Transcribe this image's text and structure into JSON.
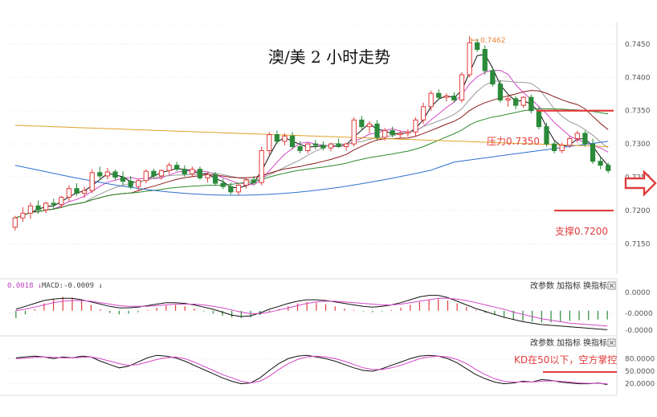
{
  "chart_data": [
    {
      "type": "candlestick",
      "title": "澳/美 2 小时走势",
      "y_ticks": [
        "0.7450",
        "0.7400",
        "0.7350",
        "0.7300",
        "0.7250",
        "0.7200",
        "0.7150"
      ],
      "ylim": [
        0.7118,
        0.748
      ],
      "high_marker": "0.7462",
      "resistance": {
        "label": "压力0.7350",
        "value": 0.735
      },
      "support": {
        "label": "支撑0.7200",
        "value": 0.72
      },
      "ohlc": [
        [
          0.7175,
          0.7192,
          0.717,
          0.7189
        ],
        [
          0.7189,
          0.7205,
          0.7183,
          0.7196
        ],
        [
          0.7196,
          0.7212,
          0.7188,
          0.7207
        ],
        [
          0.7207,
          0.7215,
          0.7195,
          0.7201
        ],
        [
          0.7201,
          0.7213,
          0.7196,
          0.7211
        ],
        [
          0.7211,
          0.7218,
          0.7202,
          0.7209
        ],
        [
          0.7209,
          0.7222,
          0.7204,
          0.722
        ],
        [
          0.722,
          0.7238,
          0.7214,
          0.7233
        ],
        [
          0.7233,
          0.7241,
          0.7222,
          0.7226
        ],
        [
          0.7226,
          0.7236,
          0.7219,
          0.723
        ],
        [
          0.723,
          0.7262,
          0.7226,
          0.7257
        ],
        [
          0.7257,
          0.7266,
          0.7246,
          0.7252
        ],
        [
          0.7252,
          0.7264,
          0.7247,
          0.7258
        ],
        [
          0.7258,
          0.7262,
          0.7246,
          0.725
        ],
        [
          0.725,
          0.7259,
          0.7238,
          0.7244
        ],
        [
          0.7244,
          0.7252,
          0.7232,
          0.7236
        ],
        [
          0.7236,
          0.7247,
          0.723,
          0.7245
        ],
        [
          0.7245,
          0.7262,
          0.7241,
          0.7259
        ],
        [
          0.7259,
          0.7263,
          0.7248,
          0.7252
        ],
        [
          0.7252,
          0.7262,
          0.7246,
          0.726
        ],
        [
          0.726,
          0.7272,
          0.7255,
          0.7268
        ],
        [
          0.7268,
          0.7273,
          0.7259,
          0.7262
        ],
        [
          0.7262,
          0.7268,
          0.7251,
          0.7255
        ],
        [
          0.7255,
          0.7266,
          0.725,
          0.7262
        ],
        [
          0.7262,
          0.7266,
          0.7246,
          0.7249
        ],
        [
          0.7249,
          0.7257,
          0.7242,
          0.7254
        ],
        [
          0.7254,
          0.7258,
          0.7238,
          0.7241
        ],
        [
          0.7241,
          0.7248,
          0.7232,
          0.7236
        ],
        [
          0.7236,
          0.7242,
          0.7224,
          0.7228
        ],
        [
          0.7228,
          0.724,
          0.7223,
          0.7238
        ],
        [
          0.7238,
          0.725,
          0.7233,
          0.7246
        ],
        [
          0.7246,
          0.7252,
          0.7238,
          0.7242
        ],
        [
          0.7242,
          0.7296,
          0.7238,
          0.729
        ],
        [
          0.729,
          0.7318,
          0.7284,
          0.7314
        ],
        [
          0.7314,
          0.732,
          0.73,
          0.7304
        ],
        [
          0.7304,
          0.7316,
          0.7298,
          0.7312
        ],
        [
          0.7312,
          0.7318,
          0.7292,
          0.7296
        ],
        [
          0.7296,
          0.7304,
          0.7286,
          0.729
        ],
        [
          0.729,
          0.7302,
          0.7286,
          0.73
        ],
        [
          0.73,
          0.7306,
          0.7292,
          0.7298
        ],
        [
          0.7298,
          0.7304,
          0.729,
          0.7294
        ],
        [
          0.7294,
          0.7302,
          0.7289,
          0.73
        ],
        [
          0.73,
          0.7308,
          0.7294,
          0.7296
        ],
        [
          0.7296,
          0.7302,
          0.729,
          0.73
        ],
        [
          0.73,
          0.734,
          0.7296,
          0.7336
        ],
        [
          0.7336,
          0.7342,
          0.732,
          0.7326
        ],
        [
          0.7326,
          0.7334,
          0.7316,
          0.733
        ],
        [
          0.733,
          0.7336,
          0.7306,
          0.731
        ],
        [
          0.731,
          0.7324,
          0.7305,
          0.732
        ],
        [
          0.732,
          0.7326,
          0.731,
          0.7314
        ],
        [
          0.7314,
          0.732,
          0.7308,
          0.7316
        ],
        [
          0.7316,
          0.7322,
          0.7311,
          0.7318
        ],
        [
          0.7318,
          0.734,
          0.7312,
          0.7336
        ],
        [
          0.7336,
          0.7362,
          0.733,
          0.7356
        ],
        [
          0.7356,
          0.738,
          0.735,
          0.7376
        ],
        [
          0.7376,
          0.7382,
          0.7366,
          0.737
        ],
        [
          0.737,
          0.7376,
          0.7364,
          0.7372
        ],
        [
          0.7372,
          0.7378,
          0.7362,
          0.7366
        ],
        [
          0.7366,
          0.7408,
          0.7362,
          0.7404
        ],
        [
          0.7404,
          0.7462,
          0.74,
          0.7452
        ],
        [
          0.7452,
          0.7458,
          0.7438,
          0.7442
        ],
        [
          0.7442,
          0.7448,
          0.7404,
          0.741
        ],
        [
          0.741,
          0.7416,
          0.7386,
          0.739
        ],
        [
          0.739,
          0.7396,
          0.7362,
          0.7366
        ],
        [
          0.7366,
          0.7372,
          0.7356,
          0.7368
        ],
        [
          0.7368,
          0.7372,
          0.7352,
          0.7358
        ],
        [
          0.7358,
          0.7372,
          0.7354,
          0.737
        ],
        [
          0.737,
          0.7374,
          0.7346,
          0.735
        ],
        [
          0.735,
          0.7356,
          0.7322,
          0.7326
        ],
        [
          0.7326,
          0.7332,
          0.7296,
          0.73
        ],
        [
          0.73,
          0.7304,
          0.7286,
          0.729
        ],
        [
          0.729,
          0.7302,
          0.7286,
          0.7298
        ],
        [
          0.7298,
          0.7312,
          0.7294,
          0.7308
        ],
        [
          0.7308,
          0.732,
          0.7302,
          0.7316
        ],
        [
          0.7316,
          0.732,
          0.7296,
          0.73
        ],
        [
          0.73,
          0.7308,
          0.727,
          0.7274
        ],
        [
          0.7274,
          0.728,
          0.7262,
          0.7268
        ],
        [
          0.7268,
          0.7272,
          0.7256,
          0.726
        ]
      ]
    },
    {
      "type": "line",
      "name": "MACD",
      "header_prefix": "0.0018 ↓",
      "header_macd": "MACD:-0.0009 ↓",
      "y_ticks": [
        "0.0000",
        "-0.0000",
        "-0.0000"
      ],
      "ylim": [
        -0.003,
        0.0025
      ],
      "buttons": [
        "改参数",
        "加指标",
        "换指标"
      ],
      "hist": [
        -0.001,
        -0.0005,
        0.0002,
        0.001,
        0.0016,
        0.0019,
        0.0018,
        0.0014,
        0.0008,
        0.0002,
        -0.0003,
        -0.0005,
        -0.0004,
        -0.0002,
        0.0001,
        0.0004,
        0.0007,
        0.0008,
        0.0006,
        0.0003,
        -0.0001,
        -0.0004,
        -0.0007,
        -0.0009,
        -0.001,
        -0.0009,
        -0.0006,
        -0.0002,
        0.0002,
        0.0006,
        0.001,
        0.0012,
        0.0011,
        0.0009,
        0.0006,
        0.0003,
        0.0001,
        -0.0001,
        -0.0002,
        -0.0001,
        0.0001,
        0.0004,
        0.0008,
        0.0012,
        0.0015,
        0.0016,
        0.0014,
        0.001,
        0.0005,
        0.0001,
        -0.0003,
        -0.0006,
        -0.0009,
        -0.0012,
        -0.0014,
        -0.0015,
        -0.0016,
        -0.0016,
        -0.0015,
        -0.0014,
        -0.0013,
        -0.0013,
        -0.0012,
        -0.0012
      ],
      "dif": [
        0.0002,
        0.0006,
        0.001,
        0.0014,
        0.0016,
        0.0017,
        0.0017,
        0.0015,
        0.0012,
        0.0009,
        0.0006,
        0.0004,
        0.0004,
        0.0005,
        0.0007,
        0.0009,
        0.0011,
        0.0011,
        0.001,
        0.0008,
        0.0005,
        0.0002,
        -0.0002,
        -0.0006,
        -0.0008,
        -0.0007,
        -0.0003,
        0.0002,
        0.0006,
        0.001,
        0.0013,
        0.0015,
        0.0015,
        0.0014,
        0.0012,
        0.001,
        0.0008,
        0.0006,
        0.0005,
        0.0006,
        0.0008,
        0.0011,
        0.0015,
        0.0019,
        0.0021,
        0.0021,
        0.0018,
        0.0013,
        0.0008,
        0.0003,
        -0.0001,
        -0.0005,
        -0.0009,
        -0.0012,
        -0.0015,
        -0.0017,
        -0.0019,
        -0.002,
        -0.0021,
        -0.0022,
        -0.0023,
        -0.0024,
        -0.0025,
        -0.0026
      ],
      "dea": [
        0.0,
        0.0002,
        0.0005,
        0.0008,
        0.0011,
        0.0013,
        0.0014,
        0.0014,
        0.0013,
        0.0011,
        0.0009,
        0.0007,
        0.0006,
        0.0006,
        0.0006,
        0.0007,
        0.0008,
        0.0009,
        0.0009,
        0.0009,
        0.0008,
        0.0006,
        0.0004,
        0.0001,
        -0.0002,
        -0.0004,
        -0.0004,
        -0.0002,
        0.0001,
        0.0004,
        0.0007,
        0.001,
        0.0012,
        0.0013,
        0.0013,
        0.0012,
        0.0011,
        0.001,
        0.0009,
        0.0008,
        0.0008,
        0.0009,
        0.0011,
        0.0013,
        0.0015,
        0.0017,
        0.0017,
        0.0016,
        0.0014,
        0.0011,
        0.0008,
        0.0005,
        0.0002,
        -0.0002,
        -0.0005,
        -0.0008,
        -0.0011,
        -0.0013,
        -0.0015,
        -0.0017,
        -0.0018,
        -0.0019,
        -0.002,
        -0.0021
      ]
    },
    {
      "type": "line",
      "name": "KD",
      "y_ticks": [
        "80.0000",
        "50.0000",
        "20.0000"
      ],
      "ylim": [
        0,
        100
      ],
      "buttons": [
        "改参数",
        "加指标",
        "换指标"
      ],
      "annotation": "KD在50以下，空方掌控",
      "k": [
        82,
        84,
        86,
        84,
        80,
        84,
        82,
        86,
        84,
        74,
        66,
        58,
        62,
        72,
        82,
        88,
        86,
        82,
        74,
        64,
        54,
        44,
        34,
        26,
        20,
        22,
        34,
        52,
        68,
        80,
        86,
        88,
        84,
        80,
        74,
        66,
        58,
        52,
        50,
        56,
        64,
        72,
        80,
        86,
        88,
        86,
        80,
        70,
        56,
        42,
        32,
        24,
        20,
        22,
        26,
        24,
        30,
        28,
        24,
        22,
        20,
        20,
        22,
        18
      ],
      "d": [
        80,
        81,
        83,
        84,
        83,
        82,
        82,
        83,
        84,
        80,
        74,
        68,
        64,
        66,
        72,
        78,
        82,
        84,
        80,
        72,
        62,
        52,
        42,
        34,
        26,
        22,
        26,
        38,
        54,
        68,
        78,
        84,
        86,
        84,
        80,
        74,
        66,
        58,
        54,
        54,
        58,
        64,
        72,
        80,
        84,
        86,
        84,
        78,
        68,
        54,
        42,
        32,
        26,
        24,
        24,
        24,
        26,
        27,
        26,
        24,
        22,
        21,
        21,
        20
      ]
    }
  ]
}
